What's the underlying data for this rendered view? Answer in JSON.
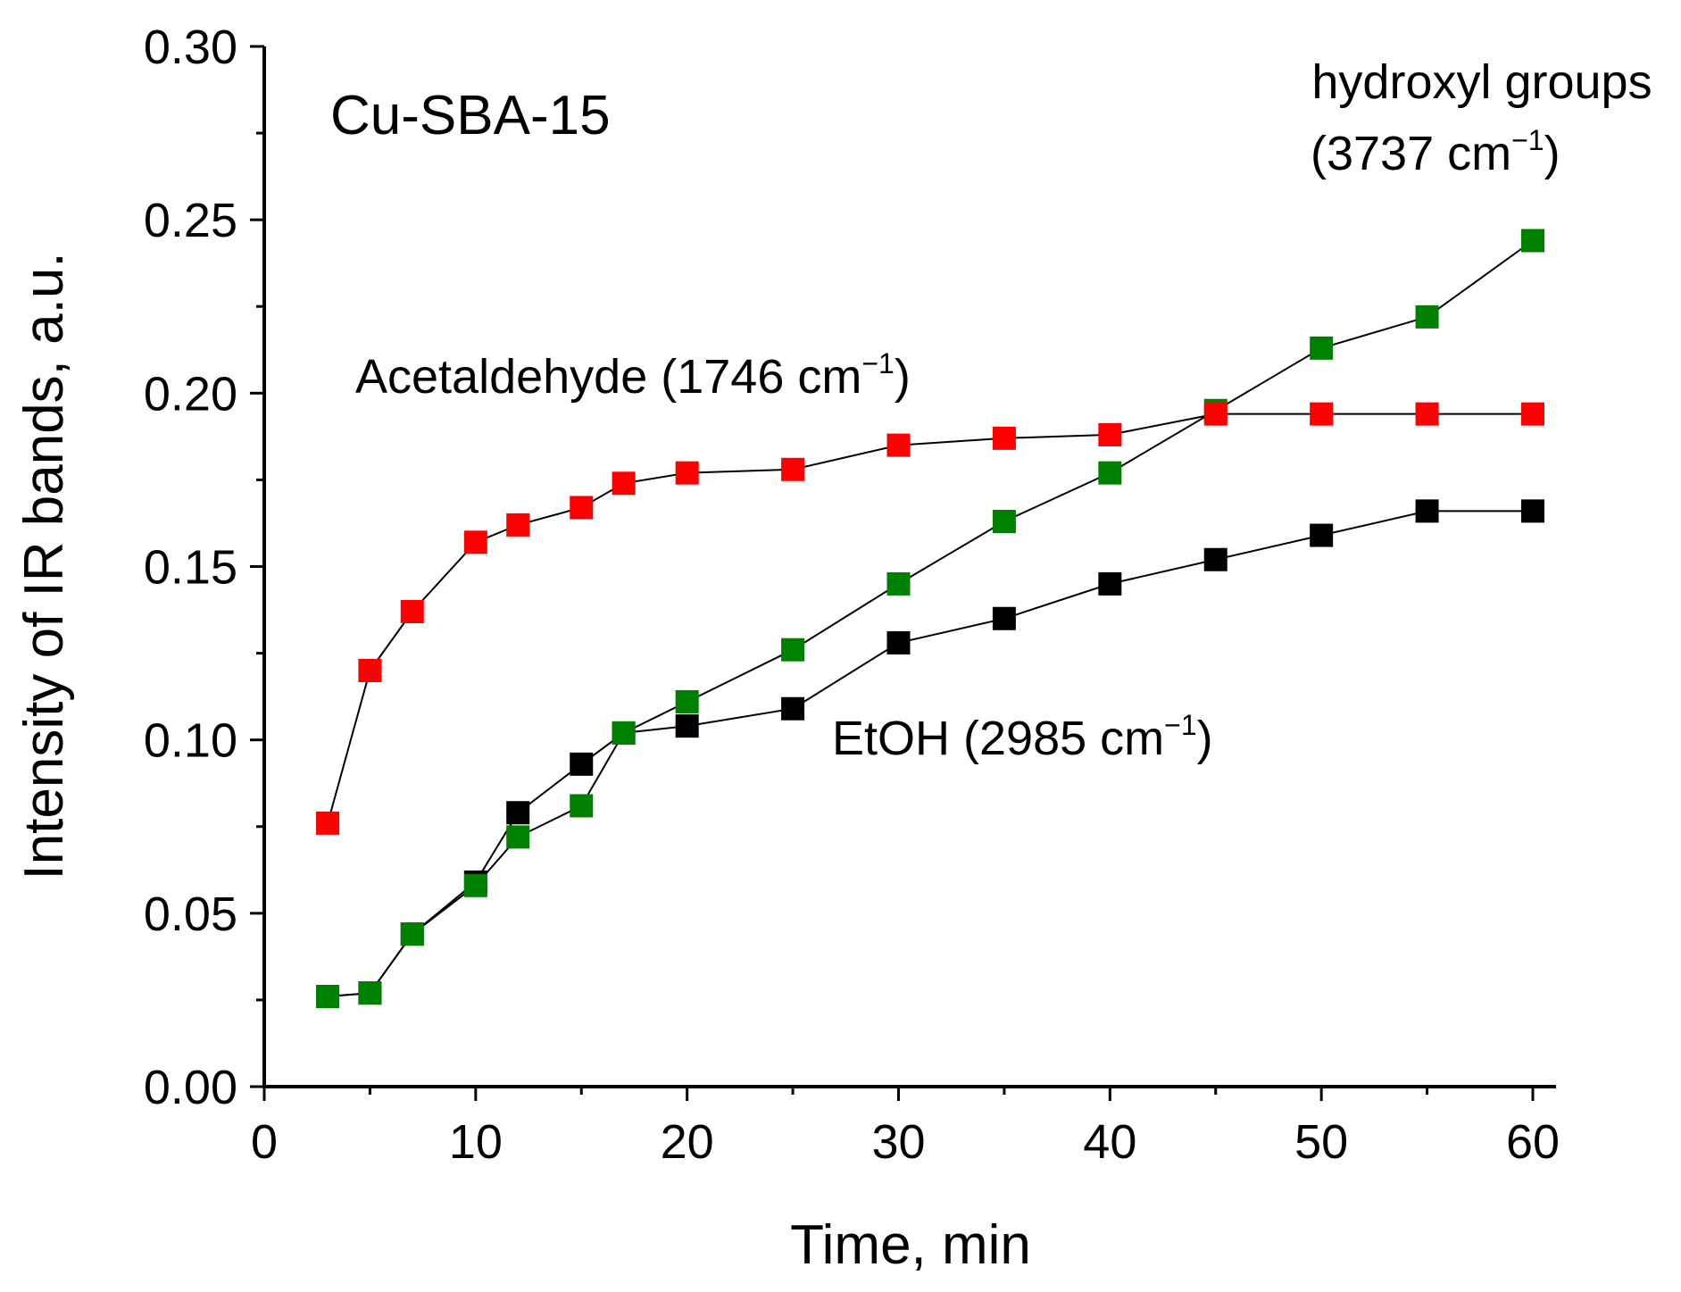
{
  "chart_data": {
    "type": "scatter",
    "title": "",
    "xlabel": "Time, min",
    "ylabel": "Intensity of IR bands, a.u.",
    "xlim": [
      0,
      61
    ],
    "ylim": [
      0,
      0.3
    ],
    "x_ticks": [
      "0",
      "10",
      "20",
      "30",
      "40",
      "50",
      "60"
    ],
    "y_ticks": [
      "0.00",
      "0.05",
      "0.10",
      "0.15",
      "0.20",
      "0.25",
      "0.30"
    ],
    "grid": false,
    "series": [
      {
        "name": "EtOH",
        "color": "#000000",
        "x": [
          3,
          5,
          7,
          10,
          12,
          15,
          17,
          20,
          25,
          30,
          35,
          40,
          45,
          50,
          55,
          60
        ],
        "values": [
          0.026,
          0.027,
          0.044,
          0.059,
          0.079,
          0.093,
          0.102,
          0.104,
          0.109,
          0.128,
          0.135,
          0.145,
          0.152,
          0.159,
          0.166,
          0.166
        ]
      },
      {
        "name": "hydroxyl groups",
        "color": "#008000",
        "x": [
          3,
          5,
          7,
          10,
          12,
          15,
          17,
          20,
          25,
          30,
          35,
          40,
          45,
          50,
          55,
          60
        ],
        "values": [
          0.026,
          0.027,
          0.044,
          0.058,
          0.072,
          0.081,
          0.102,
          0.111,
          0.126,
          0.145,
          0.163,
          0.177,
          0.195,
          0.213,
          0.222,
          0.244
        ]
      },
      {
        "name": "Acetaldehyde",
        "color": "#ff0000",
        "x": [
          3,
          5,
          7,
          10,
          12,
          15,
          17,
          20,
          25,
          30,
          35,
          40,
          45,
          50,
          55,
          60
        ],
        "values": [
          0.076,
          0.12,
          0.137,
          0.157,
          0.162,
          0.167,
          0.174,
          0.177,
          0.178,
          0.185,
          0.187,
          0.188,
          0.194,
          0.194,
          0.194,
          0.194
        ]
      }
    ],
    "annotations": {
      "sample": "Cu-SBA-15",
      "acetaldehyde_text": "Acetaldehyde (1746 cm",
      "etoh_text": "EtOH (2985 cm",
      "hydroxyl_line1": "hydroxyl groups",
      "hydroxyl_line2": "(3737 cm",
      "sup": "−1",
      "close": ")"
    }
  }
}
